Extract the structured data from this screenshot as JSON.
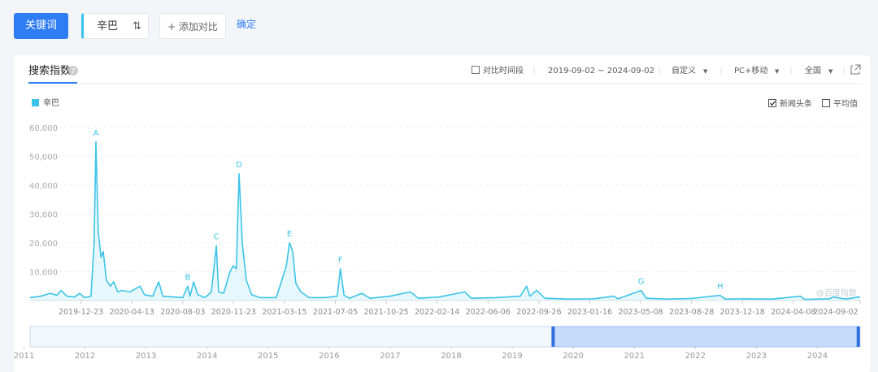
{
  "toolbar": {
    "keyword_button": "关键词",
    "keyword": "辛巴",
    "add_compare": "+ 添加对比",
    "confirm": "确定"
  },
  "panel": {
    "tab": "搜索指数",
    "compare_period": "对比时间段",
    "date_range": "2019-09-02 ~ 2024-09-02",
    "custom": "自定义",
    "device": "PC+移动",
    "region": "全国",
    "news": "新闻头条",
    "news_checked": true,
    "average": "平均值",
    "average_checked": false
  },
  "chart_data": {
    "type": "line",
    "series": [
      {
        "name": "辛巴",
        "color": "#3cc4e8",
        "x": [
          "2019-09-02",
          "2019-09-25",
          "2019-10-17",
          "2019-10-31",
          "2019-11-09",
          "2019-11-22",
          "2019-12-09",
          "2019-12-20",
          "2019-12-31",
          "2020-01-14",
          "2020-01-21",
          "2020-01-25",
          "2020-01-30",
          "2020-02-05",
          "2020-02-10",
          "2020-02-17",
          "2020-02-26",
          "2020-03-04",
          "2020-03-13",
          "2020-03-22",
          "2020-04-09",
          "2020-05-01",
          "2020-05-11",
          "2020-05-29",
          "2020-06-11",
          "2020-06-20",
          "2020-07-16",
          "2020-08-03",
          "2020-08-14",
          "2020-08-19",
          "2020-08-27",
          "2020-09-05",
          "2020-09-21",
          "2020-10-05",
          "2020-10-16",
          "2020-10-21",
          "2020-11-01",
          "2020-11-15",
          "2020-11-22",
          "2020-11-29",
          "2020-12-05",
          "2020-12-12",
          "2020-12-21",
          "2021-01-02",
          "2021-01-20",
          "2021-02-25",
          "2021-03-19",
          "2021-03-26",
          "2021-04-02",
          "2021-04-09",
          "2021-04-20",
          "2021-05-08",
          "2021-06-12",
          "2021-07-09",
          "2021-07-16",
          "2021-07-24",
          "2021-08-05",
          "2021-09-01",
          "2021-09-19",
          "2021-11-02",
          "2021-12-17",
          "2022-01-04",
          "2022-02-18",
          "2022-04-16",
          "2022-04-30",
          "2022-06-23",
          "2022-08-16",
          "2022-08-30",
          "2022-09-06",
          "2022-09-21",
          "2022-10-09",
          "2022-12-01",
          "2023-01-24",
          "2023-03-10",
          "2023-03-19",
          "2023-05-09",
          "2023-05-20",
          "2023-07-04",
          "2023-08-27",
          "2023-10-30",
          "2023-11-10",
          "2023-12-30",
          "2024-02-22",
          "2024-04-24",
          "2024-05-03",
          "2024-06-26",
          "2024-07-05",
          "2024-08-01",
          "2024-09-02"
        ],
        "values": [
          1000,
          1500,
          2500,
          1800,
          3500,
          1500,
          1200,
          2500,
          1000,
          1500,
          20000,
          55000,
          24000,
          15000,
          17000,
          7000,
          5000,
          6500,
          3000,
          3500,
          3000,
          5000,
          2000,
          1500,
          6500,
          1500,
          1200,
          1000,
          5000,
          1500,
          6500,
          2000,
          1000,
          3000,
          19000,
          3000,
          2500,
          10000,
          12000,
          11000,
          44000,
          20000,
          7000,
          2000,
          1000,
          1000,
          12000,
          20000,
          17000,
          6000,
          3000,
          1000,
          1000,
          1500,
          11000,
          1800,
          800,
          2500,
          800,
          1500,
          3000,
          800,
          1200,
          3000,
          800,
          1000,
          1500,
          5000,
          1500,
          3500,
          800,
          500,
          600,
          1500,
          600,
          3500,
          800,
          500,
          700,
          1800,
          500,
          600,
          500,
          1500,
          400,
          600,
          1200,
          500,
          1300
        ]
      }
    ],
    "xlim": [
      "2019-09-02",
      "2024-09-02"
    ],
    "xticks": [
      "2019-12-23",
      "2020-04-13",
      "2020-08-03",
      "2020-11-23",
      "2021-03-15",
      "2021-07-05",
      "2021-10-25",
      "2022-02-14",
      "2022-06-06",
      "2022-09-26",
      "2023-01-16",
      "2023-05-08",
      "2023-08-28",
      "2023-12-18",
      "2024-04-08",
      "2024-09-02"
    ],
    "ylim": [
      0,
      60000
    ],
    "yticks": [
      {
        "value": 10000,
        "label": "10,000"
      },
      {
        "value": 20000,
        "label": "20,000"
      },
      {
        "value": 30000,
        "label": "30,000"
      },
      {
        "value": 40000,
        "label": "40,000"
      },
      {
        "value": 50000,
        "label": "50,000"
      },
      {
        "value": 60000,
        "label": "60,000"
      }
    ],
    "grid": true,
    "annotations": [
      {
        "label": "A",
        "x": "2020-01-25",
        "y": 55000
      },
      {
        "label": "B",
        "x": "2020-08-14",
        "y": 5000
      },
      {
        "label": "C",
        "x": "2020-10-16",
        "y": 19000
      },
      {
        "label": "D",
        "x": "2020-12-05",
        "y": 44000
      },
      {
        "label": "E",
        "x": "2021-03-26",
        "y": 20000
      },
      {
        "label": "F",
        "x": "2021-07-16",
        "y": 11000
      },
      {
        "label": "G",
        "x": "2023-05-09",
        "y": 3500
      },
      {
        "label": "H",
        "x": "2023-10-30",
        "y": 1800
      }
    ],
    "watermark": "@百度指数",
    "navigator": {
      "xlim": [
        2011.1,
        2024.7
      ],
      "xticks": [
        2011,
        2012,
        2013,
        2014,
        2015,
        2016,
        2017,
        2018,
        2019,
        2020,
        2021,
        2022,
        2023,
        2024
      ],
      "selection": [
        2019.67,
        2024.67
      ]
    }
  }
}
